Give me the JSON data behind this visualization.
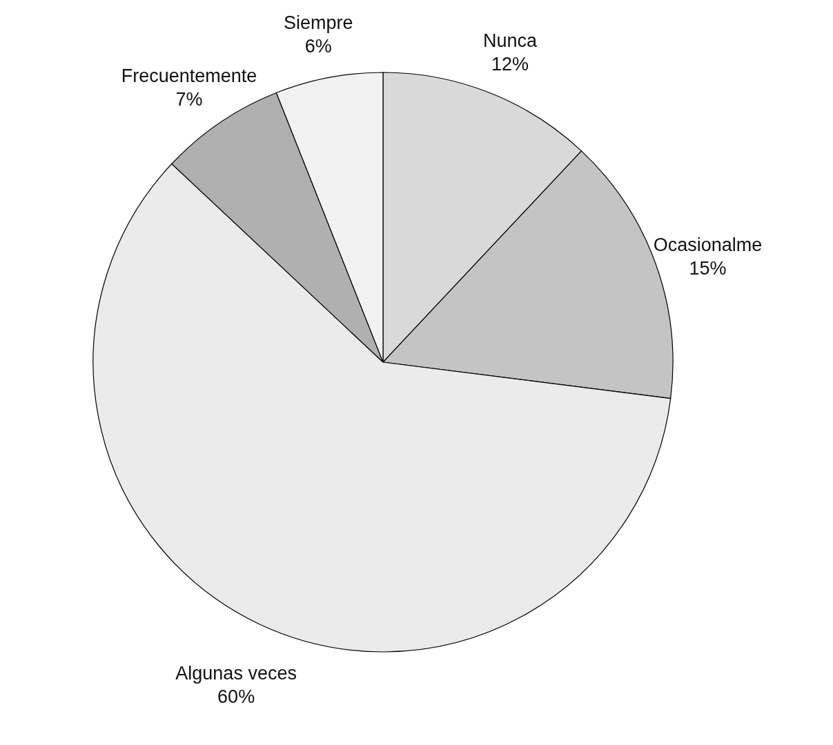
{
  "chart_data": {
    "type": "pie",
    "categories": [
      "Nunca",
      "Ocasionalme",
      "Algunas veces",
      "Frecuentemente",
      "Siempre"
    ],
    "values": [
      12,
      15,
      60,
      7,
      6
    ],
    "value_labels": [
      "12%",
      "15%",
      "60%",
      "7%",
      "6%"
    ],
    "colors": [
      "#d9d9d9",
      "#c4c4c4",
      "#ebebeb",
      "#b0b0b0",
      "#f2f2f2"
    ],
    "legend": false
  }
}
